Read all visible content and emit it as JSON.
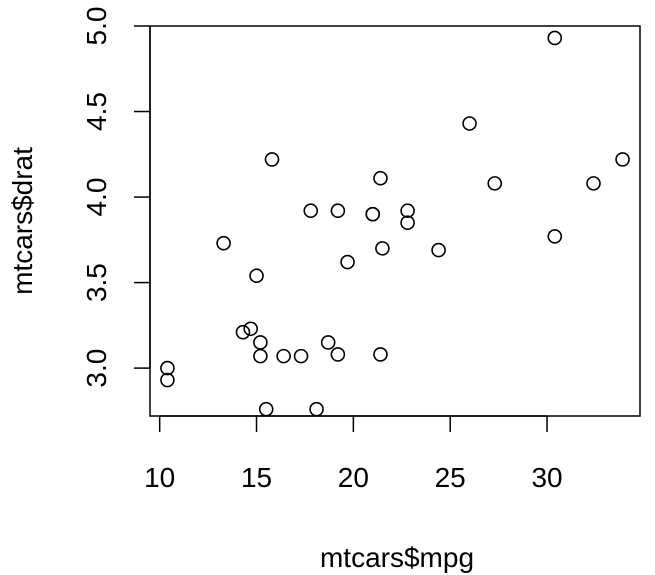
{
  "chart_data": {
    "type": "scatter",
    "xlabel": "mtcars$mpg",
    "ylabel": "mtcars$drat",
    "xlim": [
      9.5,
      34.8
    ],
    "ylim": [
      2.72,
      5.0
    ],
    "xticks": [
      10,
      15,
      20,
      25,
      30
    ],
    "yticks": [
      3.0,
      3.5,
      4.0,
      4.5,
      5.0
    ],
    "xtick_labels": [
      "10",
      "15",
      "20",
      "25",
      "30"
    ],
    "ytick_labels": [
      "3.0",
      "3.5",
      "4.0",
      "4.5",
      "5.0"
    ],
    "grid": false,
    "marker": "open-circle",
    "colors": {
      "points": "#000000",
      "frame": "#000000",
      "background": "#ffffff"
    },
    "points": [
      {
        "x": 21.0,
        "y": 3.9
      },
      {
        "x": 21.0,
        "y": 3.9
      },
      {
        "x": 22.8,
        "y": 3.85
      },
      {
        "x": 21.4,
        "y": 3.08
      },
      {
        "x": 18.7,
        "y": 3.15
      },
      {
        "x": 18.1,
        "y": 2.76
      },
      {
        "x": 14.3,
        "y": 3.21
      },
      {
        "x": 24.4,
        "y": 3.69
      },
      {
        "x": 22.8,
        "y": 3.92
      },
      {
        "x": 19.2,
        "y": 3.92
      },
      {
        "x": 17.8,
        "y": 3.92
      },
      {
        "x": 16.4,
        "y": 3.07
      },
      {
        "x": 17.3,
        "y": 3.07
      },
      {
        "x": 15.2,
        "y": 3.07
      },
      {
        "x": 10.4,
        "y": 2.93
      },
      {
        "x": 10.4,
        "y": 3.0
      },
      {
        "x": 14.7,
        "y": 3.23
      },
      {
        "x": 32.4,
        "y": 4.08
      },
      {
        "x": 30.4,
        "y": 4.93
      },
      {
        "x": 33.9,
        "y": 4.22
      },
      {
        "x": 21.5,
        "y": 3.7
      },
      {
        "x": 15.5,
        "y": 2.76
      },
      {
        "x": 15.2,
        "y": 3.15
      },
      {
        "x": 13.3,
        "y": 3.73
      },
      {
        "x": 19.2,
        "y": 3.08
      },
      {
        "x": 27.3,
        "y": 4.08
      },
      {
        "x": 26.0,
        "y": 4.43
      },
      {
        "x": 30.4,
        "y": 3.77
      },
      {
        "x": 15.8,
        "y": 4.22
      },
      {
        "x": 19.7,
        "y": 3.62
      },
      {
        "x": 15.0,
        "y": 3.54
      },
      {
        "x": 21.4,
        "y": 4.11
      }
    ]
  }
}
